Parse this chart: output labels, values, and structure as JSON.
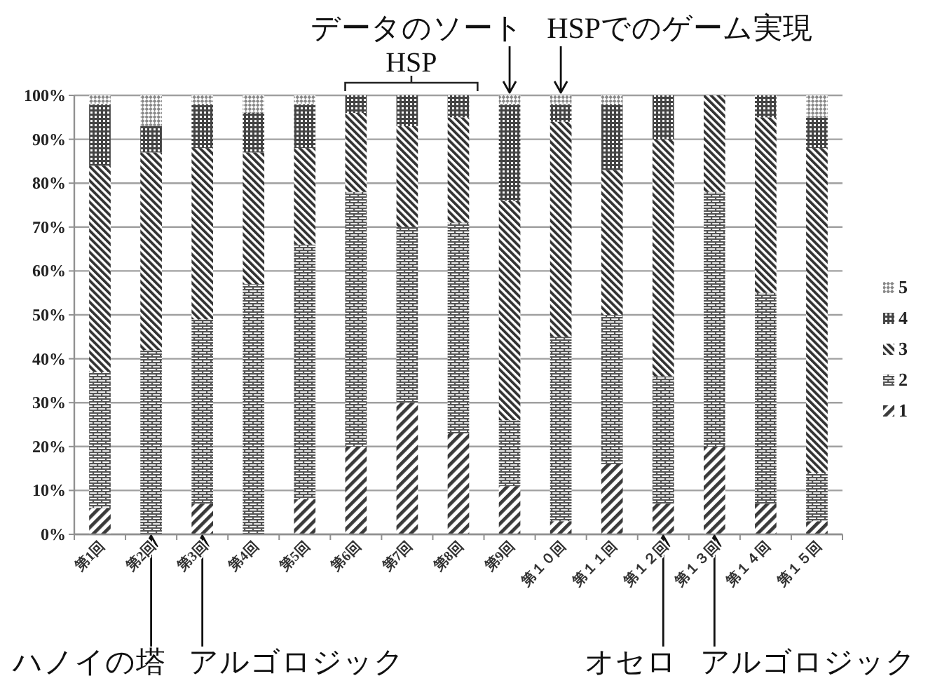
{
  "chart_data": {
    "type": "bar",
    "stacked": true,
    "categories": [
      "第1回",
      "第2回",
      "第3回",
      "第4回",
      "第5回",
      "第6回",
      "第7回",
      "第8回",
      "第9回",
      "第１０回",
      "第１１回",
      "第１２回",
      "第１３回",
      "第１４回",
      "第１５回"
    ],
    "series": [
      {
        "name": "1",
        "color": "#3a3a3a",
        "values": [
          6,
          0,
          7,
          0,
          8,
          20,
          30,
          23,
          11,
          3,
          16,
          7,
          20,
          7,
          3
        ]
      },
      {
        "name": "2",
        "color": "#555555",
        "values": [
          31,
          42,
          42,
          57,
          58,
          58,
          40,
          48,
          15,
          42,
          34,
          29,
          58,
          48,
          11
        ]
      },
      {
        "name": "3",
        "color": "#333333",
        "values": [
          47,
          45,
          39,
          30,
          22,
          18,
          23,
          24,
          50,
          49,
          33,
          54,
          22,
          40,
          74
        ]
      },
      {
        "name": "4",
        "color": "#444444",
        "values": [
          14,
          6,
          10,
          9,
          10,
          4,
          7,
          5,
          22,
          4,
          15,
          10,
          0,
          5,
          7
        ]
      },
      {
        "name": "5",
        "color": "#888888",
        "values": [
          2,
          7,
          2,
          4,
          2,
          0,
          0,
          0,
          2,
          2,
          2,
          0,
          0,
          0,
          5
        ]
      }
    ],
    "ylim": [
      0,
      100
    ],
    "yticks": [
      {
        "value": 0,
        "label": "0%"
      },
      {
        "value": 10,
        "label": "10%"
      },
      {
        "value": 20,
        "label": "20%"
      },
      {
        "value": 30,
        "label": "30%"
      },
      {
        "value": 40,
        "label": "40%"
      },
      {
        "value": 50,
        "label": "50%"
      },
      {
        "value": 60,
        "label": "60%"
      },
      {
        "value": 70,
        "label": "70%"
      },
      {
        "value": 80,
        "label": "80%"
      },
      {
        "value": 90,
        "label": "90%"
      },
      {
        "value": 100,
        "label": "100%"
      }
    ],
    "grid": "y",
    "legend": "right",
    "annotations": [
      "HSP",
      "データのソート",
      "HSPでのゲーム実現",
      "ハノイの塔",
      "アルゴロジック",
      "オセロ",
      "アルゴロジック"
    ]
  }
}
